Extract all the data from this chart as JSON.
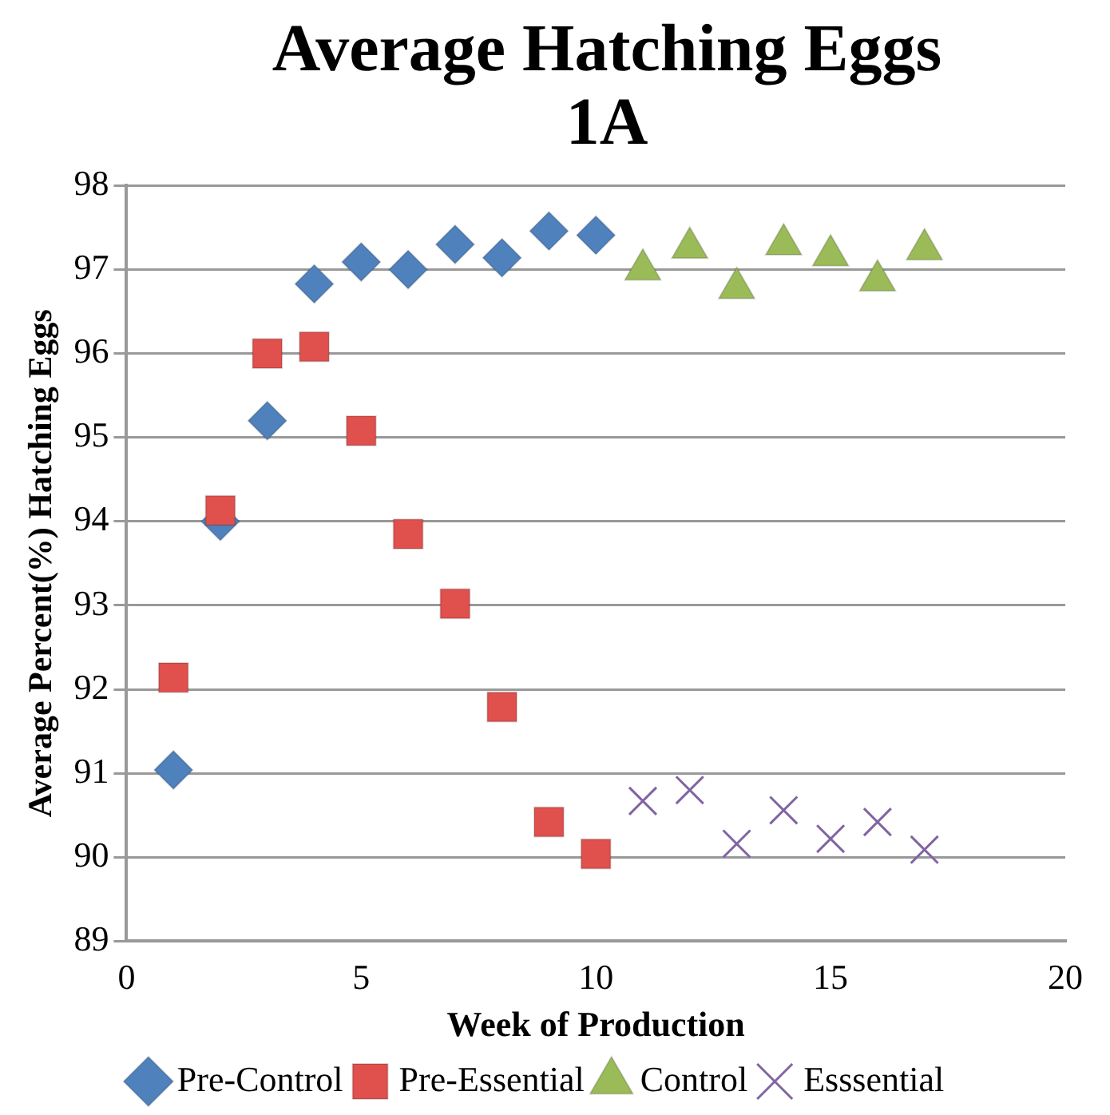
{
  "chart_data": {
    "type": "scatter",
    "title": "Average Hatching Eggs 1A",
    "xlabel": "Week of Production",
    "ylabel": "Average Percent(%) Hatching Eggs",
    "xlim": [
      0,
      20
    ],
    "xticks": [
      0,
      5,
      10,
      15,
      20
    ],
    "ylim": [
      89,
      98
    ],
    "yticks": [
      89,
      90,
      91,
      92,
      93,
      94,
      95,
      96,
      97,
      98
    ],
    "grid": "y",
    "legend": "bottom",
    "series": [
      {
        "name": "Pre-Control",
        "color": "#4f81bd",
        "marker": "diamond",
        "x": [
          1,
          2,
          3,
          4,
          5,
          6,
          7,
          8,
          9,
          10
        ],
        "values": [
          91.04,
          94.0,
          95.2,
          96.83,
          97.09,
          97.0,
          97.3,
          97.14,
          97.46,
          97.41
        ]
      },
      {
        "name": "Pre-Essential",
        "color": "#e0504d",
        "marker": "square",
        "x": [
          1,
          2,
          3,
          4,
          5,
          6,
          7,
          8,
          9,
          10
        ],
        "values": [
          92.14,
          94.13,
          96.0,
          96.08,
          95.08,
          93.85,
          93.02,
          91.79,
          90.42,
          90.04
        ]
      },
      {
        "name": "Control",
        "color": "#9bbb59",
        "marker": "triangle",
        "x": [
          11,
          12,
          13,
          14,
          15,
          16,
          17
        ],
        "values": [
          97.0,
          97.26,
          96.78,
          97.3,
          97.17,
          96.87,
          97.24
        ]
      },
      {
        "name": "Esssential",
        "color": "#8064a2",
        "marker": "cross",
        "x": [
          11,
          12,
          13,
          14,
          15,
          16,
          17
        ],
        "values": [
          90.67,
          90.8,
          90.16,
          90.56,
          90.22,
          90.42,
          90.09
        ]
      }
    ]
  }
}
